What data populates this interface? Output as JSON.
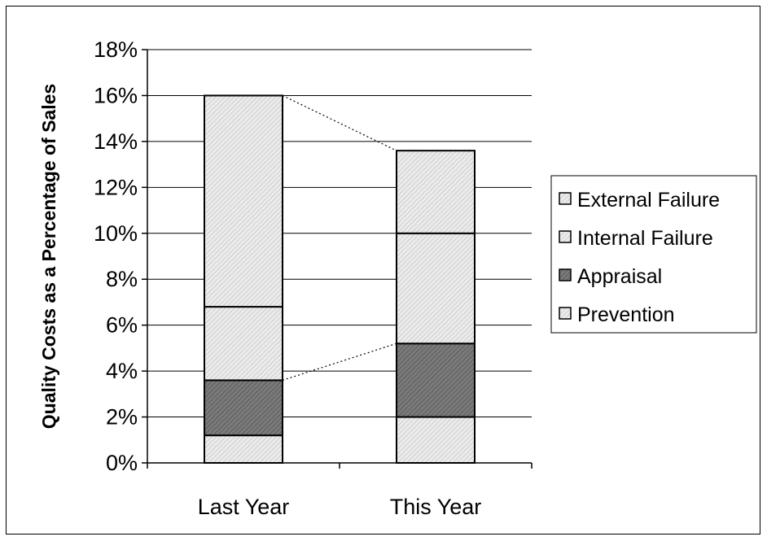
{
  "chart_data": {
    "type": "bar",
    "stacked": true,
    "categories": [
      "Last Year",
      "This Year"
    ],
    "series": [
      {
        "name": "Prevention",
        "values": [
          1.2,
          2.0
        ],
        "color": "#e6e6e6",
        "pattern": "light-diagonal"
      },
      {
        "name": "Appraisal",
        "values": [
          2.4,
          3.2
        ],
        "color": "#707070",
        "pattern": "dark-diagonal"
      },
      {
        "name": "Internal Failure",
        "values": [
          3.2,
          4.8
        ],
        "color": "#e0e0e0",
        "pattern": "light-diagonal"
      },
      {
        "name": "External Failure",
        "values": [
          9.2,
          3.6
        ],
        "color": "#dedede",
        "pattern": "light-diagonal"
      }
    ],
    "legend_order": [
      "External Failure",
      "Internal Failure",
      "Appraisal",
      "Prevention"
    ],
    "ylim": [
      0,
      18
    ],
    "yticks": [
      "0%",
      "2%",
      "4%",
      "6%",
      "8%",
      "10%",
      "12%",
      "14%",
      "16%",
      "18%"
    ],
    "ytick_values": [
      0,
      2,
      4,
      6,
      8,
      10,
      12,
      14,
      16,
      18
    ],
    "ylabel": "Quality Costs as a Percentage of Sales",
    "xlabel": "",
    "title": "",
    "grid": true,
    "legend_position": "right",
    "series_connectors": true
  }
}
